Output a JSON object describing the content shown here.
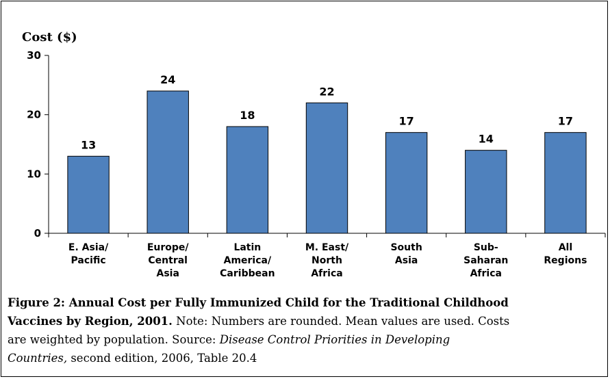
{
  "chart_data": {
    "type": "bar",
    "ylabel": "Cost ($)",
    "categories": [
      [
        "E. Asia/",
        "Pacific"
      ],
      [
        "Europe/",
        "Central",
        "Asia"
      ],
      [
        "Latin",
        "America/",
        "Caribbean"
      ],
      [
        "M. East/",
        "North",
        "Africa"
      ],
      [
        "South",
        "Asia"
      ],
      [
        "Sub-",
        "Saharan",
        "Africa"
      ],
      [
        "All",
        "Regions"
      ]
    ],
    "values": [
      13,
      24,
      18,
      22,
      17,
      14,
      17
    ],
    "data_labels": [
      "13",
      "24",
      "18",
      "22",
      "17",
      "14",
      "17"
    ],
    "ylim": [
      0,
      30
    ],
    "yticks": [
      "0",
      "10",
      "20",
      "30"
    ],
    "grid": false,
    "legend": "none",
    "bar_color": "#4F81BD",
    "bar_border_color": "#000000"
  },
  "caption": {
    "line1": "Figure 2: Annual Cost per Fully Immunized Child for the Traditional Childhood",
    "line2_bold": "Vaccines by Region, 2001.",
    "line2_rest": " Note: Numbers are rounded. Mean values are used. Costs",
    "line3_a": "are weighted by population.  Source: ",
    "line3_italic": "Disease Control Priorities in Developing",
    "line4_italic": "Countries,",
    "line4_rest": " second edition, 2006, Table 20.4"
  }
}
